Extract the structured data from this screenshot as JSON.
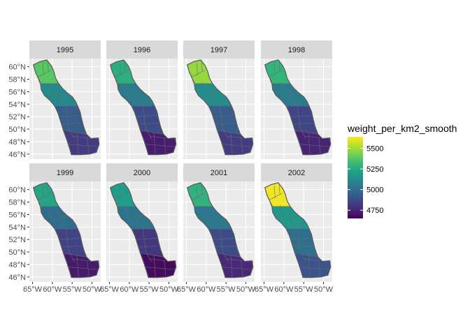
{
  "legend": {
    "title": "weight_per_km2_smooth",
    "ticks": [
      5500,
      5250,
      5000,
      4750
    ],
    "tick_labels": [
      "5500",
      "5250",
      "5000",
      "4750"
    ],
    "range": [
      4650,
      5640
    ],
    "colors": [
      "#440154",
      "#482878",
      "#3e4989",
      "#31688e",
      "#26828e",
      "#1f9e89",
      "#35b779",
      "#6ece58",
      "#b5de2b",
      "#fde725"
    ]
  },
  "axes": {
    "y_ticks": [
      60,
      58,
      56,
      54,
      52,
      50,
      48,
      46
    ],
    "y_labels": [
      "60°N",
      "58°N",
      "56°N",
      "54°N",
      "52°N",
      "50°N",
      "48°N",
      "46°N"
    ],
    "x_ticks": [
      -65,
      -60,
      -55,
      -50
    ],
    "x_labels": [
      "65°W",
      "60°W",
      "55°W",
      "50°W"
    ],
    "lat_range": [
      45.2,
      61.3
    ],
    "lon_range": [
      -65.8,
      -47.8
    ]
  },
  "panels": [
    {
      "year": "1995",
      "values": {
        "north": 5380,
        "mid": 5120,
        "central": 4940,
        "south": 4830
      }
    },
    {
      "year": "1996",
      "values": {
        "north": 5270,
        "mid": 5060,
        "central": 4880,
        "south": 4730
      }
    },
    {
      "year": "1997",
      "values": {
        "north": 5480,
        "mid": 5130,
        "central": 4940,
        "south": 4830
      }
    },
    {
      "year": "1998",
      "values": {
        "north": 5300,
        "mid": 5060,
        "central": 4860,
        "south": 4750
      }
    },
    {
      "year": "1999",
      "values": {
        "north": 5230,
        "mid": 5000,
        "central": 4850,
        "south": 4720
      }
    },
    {
      "year": "2000",
      "values": {
        "north": 5200,
        "mid": 5030,
        "central": 4810,
        "south": 4680
      }
    },
    {
      "year": "2001",
      "values": {
        "north": 5290,
        "mid": 5050,
        "central": 4880,
        "south": 4760
      }
    },
    {
      "year": "2002",
      "values": {
        "north": 5620,
        "mid": 5180,
        "central": 5010,
        "south": 4910
      }
    }
  ]
}
